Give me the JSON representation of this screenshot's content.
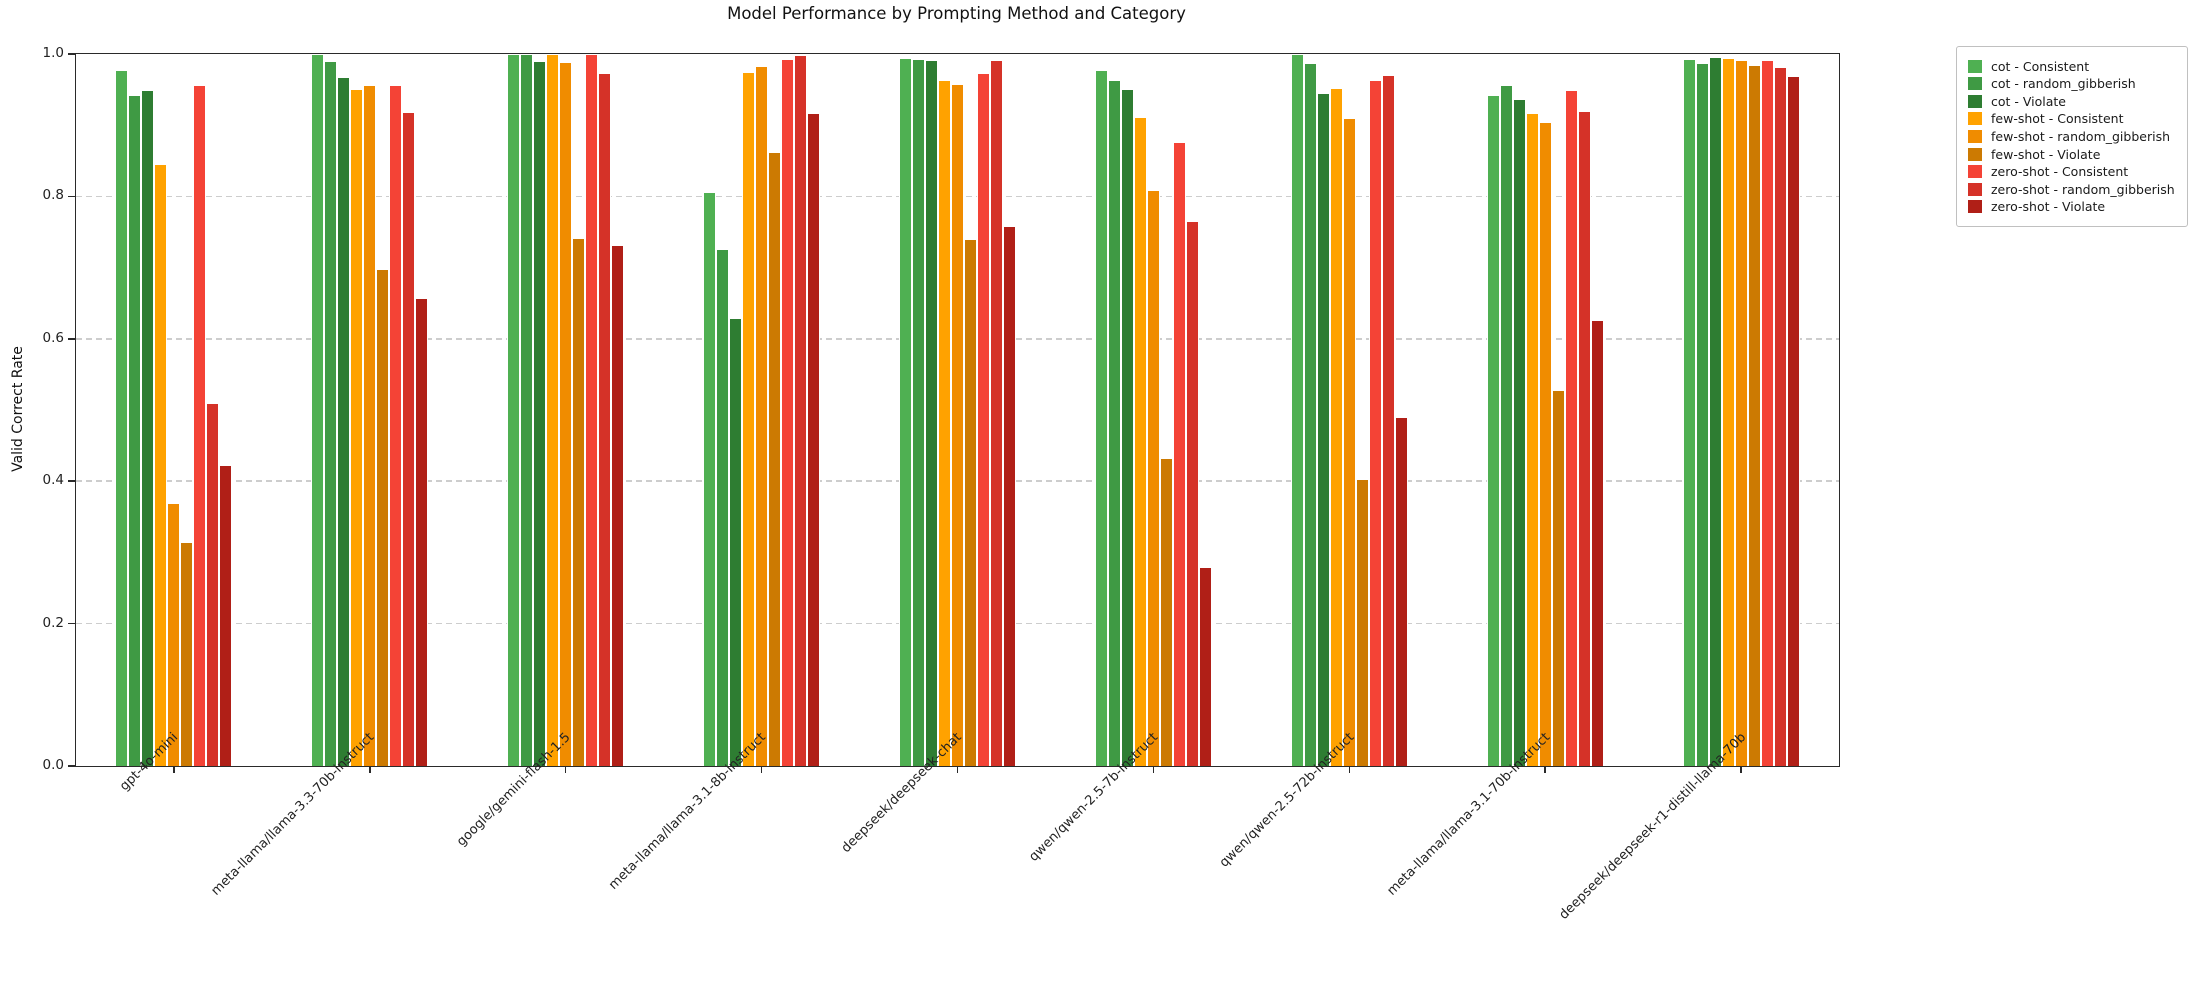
{
  "title": "Model Performance by Prompting Method and Category",
  "ylabel": "Valid Correct Rate",
  "legend": {
    "position": "outside-upper-right",
    "labels": [
      "cot - Consistent",
      "cot - random_gibberish",
      "cot - Violate",
      "few-shot - Consistent",
      "few-shot - random_gibberish",
      "few-shot - Violate",
      "zero-shot - Consistent",
      "zero-shot - random_gibberish",
      "zero-shot - Violate"
    ]
  },
  "chart_data": {
    "type": "bar",
    "title": "Model Performance by Prompting Method and Category",
    "xlabel": "",
    "ylabel": "Valid Correct Rate",
    "ylim": [
      0.0,
      1.0
    ],
    "yticks": [
      0.0,
      0.2,
      0.4,
      0.6,
      0.8,
      1.0
    ],
    "grid": "horizontal-dashed",
    "legend_position": "outside upper right",
    "categories": [
      "gpt-4o-mini",
      "meta-llama/llama-3.3-70b-instruct",
      "google/gemini-flash-1.5",
      "meta-llama/llama-3.1-8b-instruct",
      "deepseek/deepseek-chat",
      "qwen/qwen-2.5-7b-instruct",
      "qwen/qwen-2.5-72b-instruct",
      "meta-llama/llama-3.1-70b-instruct",
      "deepseek/deepseek-r1-distill-llama-70b"
    ],
    "series": [
      {
        "name": "cot - Consistent",
        "color": "#4fb052",
        "values": [
          0.977,
          1.0,
          1.0,
          0.806,
          0.995,
          0.977,
          1.0,
          0.943,
          0.993
        ]
      },
      {
        "name": "cot - random_gibberish",
        "color": "#3f9a44",
        "values": [
          0.943,
          0.99,
          1.0,
          0.726,
          0.993,
          0.964,
          0.988,
          0.957,
          0.987
        ]
      },
      {
        "name": "cot - Violate",
        "color": "#2e7d32",
        "values": [
          0.95,
          0.968,
          0.99,
          0.629,
          0.991,
          0.951,
          0.945,
          0.937,
          0.996
        ]
      },
      {
        "name": "few-shot - Consistent",
        "color": "#ffa200",
        "values": [
          0.845,
          0.951,
          1.0,
          0.975,
          0.964,
          0.912,
          0.953,
          0.917,
          0.994
        ]
      },
      {
        "name": "few-shot - random_gibberish",
        "color": "#f08c00",
        "values": [
          0.37,
          0.957,
          0.989,
          0.983,
          0.958,
          0.809,
          0.91,
          0.905,
          0.991
        ]
      },
      {
        "name": "few-shot - Violate",
        "color": "#cc7a02",
        "values": [
          0.315,
          0.698,
          0.741,
          0.862,
          0.74,
          0.432,
          0.403,
          0.528,
          0.985
        ]
      },
      {
        "name": "zero-shot - Consistent",
        "color": "#f44336",
        "values": [
          0.957,
          0.957,
          1.0,
          0.993,
          0.973,
          0.877,
          0.963,
          0.95,
          0.991
        ]
      },
      {
        "name": "zero-shot - random_gibberish",
        "color": "#d53228",
        "values": [
          0.51,
          0.918,
          0.974,
          0.999,
          0.991,
          0.766,
          0.97,
          0.92,
          0.982
        ]
      },
      {
        "name": "zero-shot - Violate",
        "color": "#b01f17",
        "values": [
          0.423,
          0.657,
          0.732,
          0.917,
          0.758,
          0.28,
          0.49,
          0.627,
          0.969
        ]
      }
    ]
  }
}
